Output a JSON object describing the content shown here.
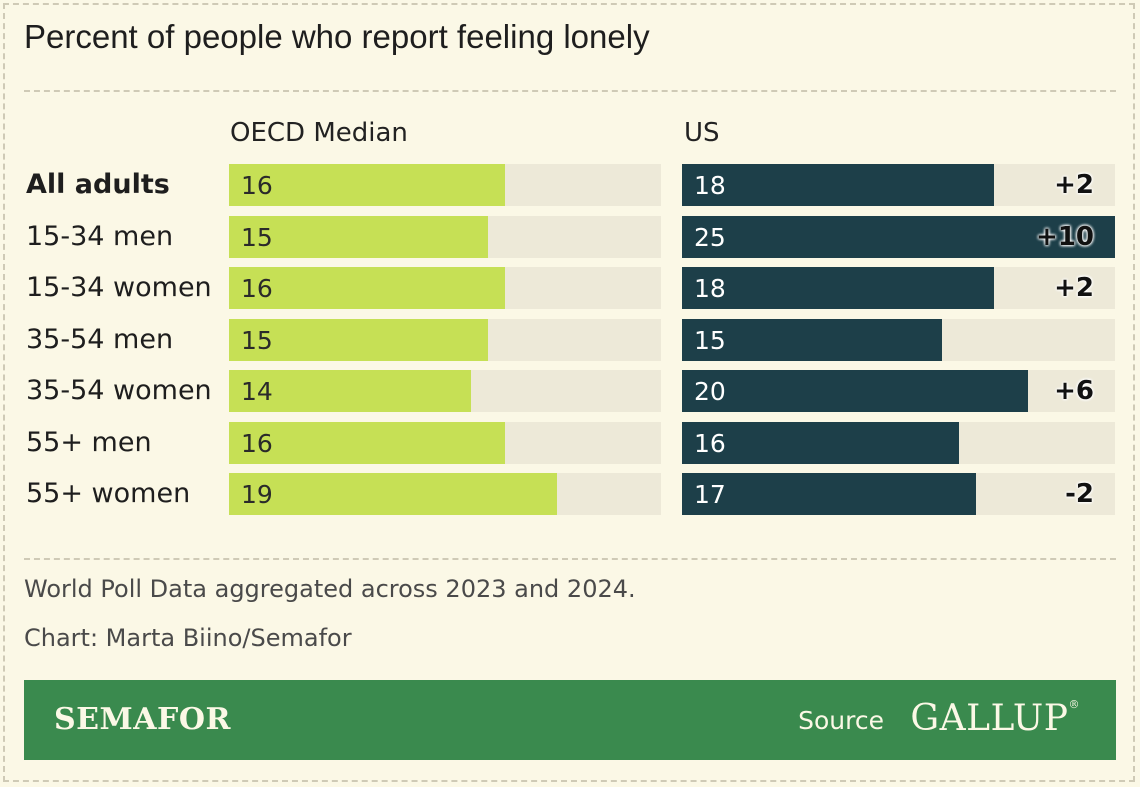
{
  "chart_data": {
    "type": "bar",
    "title": "Percent of people who report feeling lonely",
    "categories": [
      "All adults",
      "15-34 men",
      "15-34 women",
      "35-54 men",
      "35-54 women",
      "55+ men",
      "55+ women"
    ],
    "series": [
      {
        "name": "OECD Median",
        "values": [
          16,
          15,
          16,
          15,
          14,
          16,
          19
        ],
        "labels": [
          "16",
          "15",
          "16",
          "15",
          "14",
          "16",
          "19"
        ]
      },
      {
        "name": "US",
        "values": [
          18,
          25,
          18,
          15,
          20,
          16,
          17
        ],
        "labels": [
          "18",
          "25",
          "18",
          "15",
          "20",
          "16",
          "17"
        ]
      }
    ],
    "differences": [
      "+2",
      "+10",
      "+2",
      "",
      "+6",
      "",
      "-2"
    ],
    "bold_category": "All adults",
    "xlim": [
      0,
      25
    ],
    "colors": {
      "oecd": "#c6e055",
      "us": "#1d3f49",
      "track": "#ede9d8"
    }
  },
  "notes": {
    "data_note": "World Poll Data aggregated across 2023 and 2024.",
    "credit": "Chart: Marta Biino/Semafor"
  },
  "footer": {
    "brand": "SEMAFOR",
    "source_label": "Source",
    "source_name": "GALLUP",
    "background": "#3a8a4e"
  }
}
